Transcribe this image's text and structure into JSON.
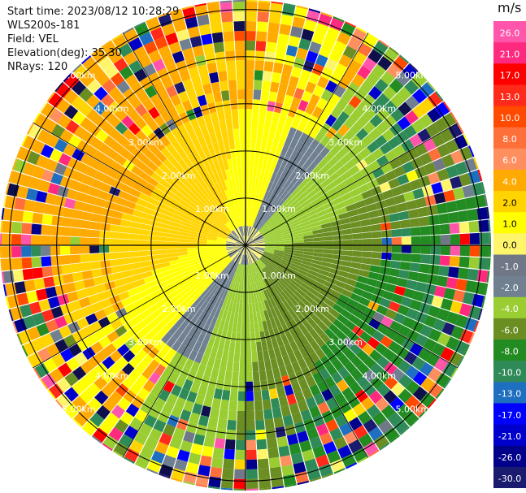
{
  "header": {
    "start_time": "Start time: 2023/08/12 10:28:29",
    "site": "WLS200s-181",
    "field": "Field: VEL",
    "elevation": "Elevation(deg): 35.30",
    "nrays": "NRays: 120"
  },
  "colorbar": {
    "unit": "m/s",
    "ticks": [
      "26.0",
      "21.0",
      "17.0",
      "13.0",
      "10.0",
      "8.0",
      "6.0",
      "4.0",
      "2.0",
      "1.0",
      "0.0",
      "-1.0",
      "-2.0",
      "-4.0",
      "-6.0",
      "-8.0",
      "-10.0",
      "-13.0",
      "-17.0",
      "-21.0",
      "-26.0",
      "-30.0"
    ],
    "colors": [
      "#ff55aa",
      "#ff2a7f",
      "#ff0000",
      "#ff2a1a",
      "#ff4a00",
      "#ff6f3a",
      "#ff8f5f",
      "#ffaa00",
      "#ffd400",
      "#ffff00",
      "#fff56a",
      "#707888",
      "#708090",
      "#9acd32",
      "#6b8e23",
      "#228b22",
      "#2e8b57",
      "#1e6fbf",
      "#0000ff",
      "#0000cd",
      "#00008b",
      "#1a1a6e",
      "#0f0f4d"
    ]
  },
  "chart_data": {
    "type": "ppi",
    "field": "VEL",
    "range_ring_labels": [
      "1.00km",
      "2.00km",
      "3.00km",
      "4.00km",
      "5.00km"
    ],
    "range_rings_km": [
      1,
      2,
      3,
      4,
      5
    ],
    "max_range_km": 5.2,
    "n_rays": 120,
    "value_range": [
      -30,
      30
    ],
    "velocity_pattern": "positive (yellow/orange) toward west and north, negative (green) toward east and south, noisy mixed colors at outer ranges"
  }
}
